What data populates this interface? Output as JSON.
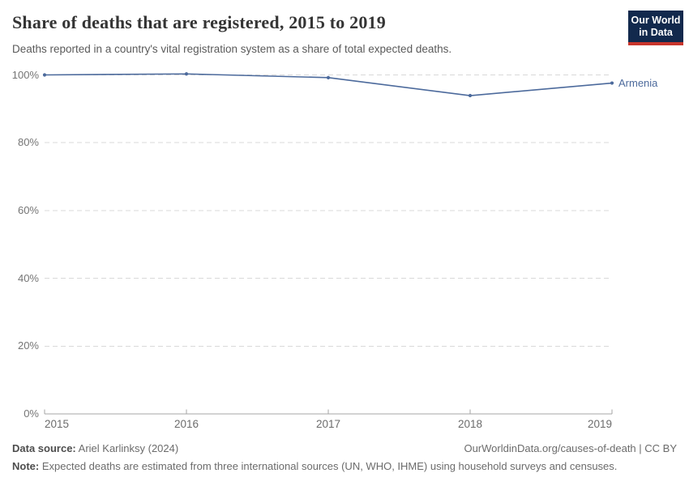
{
  "header": {
    "title": "Share of deaths that are registered, 2015 to 2019",
    "subtitle": "Deaths reported in a country's vital registration system as a share of total expected deaths.",
    "logo": {
      "line1": "Our World",
      "line2": "in Data",
      "bg_color": "#12294d",
      "accent_color": "#c8352c"
    }
  },
  "chart_data": {
    "type": "line",
    "title": "Share of deaths that are registered, 2015 to 2019",
    "x": [
      2015,
      2016,
      2017,
      2018,
      2019
    ],
    "x_tick_labels": [
      "2015",
      "2016",
      "2017",
      "2018",
      "2019"
    ],
    "series": [
      {
        "name": "Armenia",
        "values": [
          100,
          100.3,
          99.2,
          93.9,
          97.6
        ],
        "color": "#4c6a9c"
      }
    ],
    "y_ticks": [
      0,
      20,
      40,
      60,
      80,
      100
    ],
    "y_tick_labels": [
      "0%",
      "20%",
      "40%",
      "60%",
      "80%",
      "100%"
    ],
    "ylim": [
      0,
      100
    ],
    "xlabel": "",
    "ylabel": "",
    "grid": "horizontal-dashed",
    "legend_position": "end-of-line-label",
    "gridline_color": "#d9d9d9",
    "axis_color": "#a6a6a6"
  },
  "footer": {
    "data_source_label": "Data source:",
    "data_source_value": "Ariel Karlinksy (2024)",
    "credit": "OurWorldinData.org/causes-of-death | CC BY",
    "note_label": "Note:",
    "note_value": "Expected deaths are estimated from three international sources (UN, WHO, IHME) using household surveys and censuses."
  }
}
